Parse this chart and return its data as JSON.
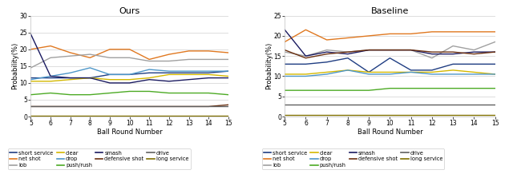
{
  "x": [
    5,
    6,
    7,
    8,
    9,
    10,
    11,
    12,
    13,
    14,
    15
  ],
  "ours": {
    "short_service": [
      11.5,
      11.5,
      11.5,
      11.5,
      12.5,
      12.5,
      13.0,
      13.0,
      13.0,
      13.0,
      13.5
    ],
    "net_shot": [
      20.0,
      21.0,
      19.0,
      17.5,
      20.0,
      20.0,
      17.0,
      18.5,
      19.5,
      19.5,
      19.0
    ],
    "lob": [
      14.5,
      17.5,
      18.0,
      18.5,
      17.5,
      17.5,
      16.5,
      16.5,
      17.0,
      17.0,
      17.0
    ],
    "clear": [
      10.5,
      10.5,
      11.0,
      11.5,
      11.0,
      11.0,
      11.5,
      12.5,
      12.5,
      12.5,
      12.0
    ],
    "drop": [
      11.0,
      12.0,
      13.0,
      14.5,
      12.5,
      12.5,
      14.0,
      13.5,
      13.5,
      13.5,
      13.5
    ],
    "push_rush": [
      6.5,
      7.0,
      6.5,
      6.5,
      7.0,
      7.5,
      7.5,
      7.0,
      7.0,
      7.0,
      6.5
    ],
    "smash": [
      24.5,
      12.0,
      11.5,
      11.5,
      10.0,
      10.0,
      11.0,
      10.5,
      11.0,
      11.5,
      11.5
    ],
    "defensive_shot": [
      3.0,
      3.0,
      3.0,
      3.0,
      3.0,
      3.0,
      3.0,
      3.0,
      3.0,
      3.0,
      3.5
    ],
    "drive": [
      3.0,
      3.0,
      3.0,
      3.0,
      3.0,
      3.0,
      3.0,
      3.0,
      3.0,
      3.0,
      3.0
    ],
    "long_service": [
      0.2,
      0.2,
      0.2,
      0.2,
      0.2,
      0.2,
      0.2,
      0.2,
      0.2,
      0.2,
      0.2
    ]
  },
  "baseline": {
    "short_service": [
      13.0,
      13.0,
      13.5,
      14.5,
      11.0,
      14.5,
      11.5,
      11.5,
      13.0,
      13.0,
      13.0
    ],
    "net_shot": [
      18.5,
      21.5,
      19.0,
      19.5,
      20.0,
      20.5,
      20.5,
      21.0,
      21.0,
      21.0,
      21.0
    ],
    "lob": [
      16.0,
      15.0,
      16.5,
      16.0,
      16.5,
      16.5,
      16.5,
      14.5,
      17.5,
      16.5,
      18.5
    ],
    "clear": [
      10.5,
      10.5,
      11.0,
      11.5,
      11.0,
      11.0,
      11.0,
      11.0,
      11.5,
      11.0,
      10.5
    ],
    "drop": [
      10.0,
      10.0,
      10.5,
      11.5,
      10.5,
      10.5,
      11.0,
      10.5,
      10.5,
      10.5,
      10.5
    ],
    "push_rush": [
      6.5,
      6.5,
      6.5,
      6.5,
      6.5,
      7.0,
      7.0,
      7.0,
      7.0,
      7.0,
      7.0
    ],
    "smash": [
      21.5,
      15.0,
      16.0,
      15.5,
      16.5,
      16.5,
      16.5,
      15.5,
      15.5,
      16.0,
      16.0
    ],
    "defensive_shot": [
      16.5,
      14.5,
      15.5,
      16.0,
      16.5,
      16.5,
      16.5,
      16.0,
      16.0,
      15.5,
      16.0
    ],
    "drive": [
      3.0,
      3.0,
      3.0,
      3.0,
      3.0,
      3.0,
      3.0,
      3.0,
      3.0,
      3.0,
      3.0
    ],
    "long_service": [
      0.5,
      0.5,
      0.5,
      0.5,
      0.5,
      0.5,
      0.5,
      0.5,
      0.5,
      0.5,
      0.5
    ]
  },
  "colors": {
    "short_service": "#1f3d82",
    "net_shot": "#e07820",
    "lob": "#a0a0a0",
    "clear": "#d4b800",
    "drop": "#4d96c8",
    "push_rush": "#4caa24",
    "smash": "#1a1a60",
    "defensive_shot": "#6b3010",
    "drive": "#606060",
    "long_service": "#807000"
  },
  "legend_labels": {
    "short_service": "short service",
    "net_shot": "net shot",
    "lob": "lob",
    "clear": "clear",
    "drop": "drop",
    "push_rush": "push/rush",
    "smash": "smash",
    "defensive_shot": "defensive shot",
    "drive": "drive",
    "long_service": "long service"
  },
  "legend_order": [
    "short_service",
    "net_shot",
    "lob",
    "clear",
    "drop",
    "push_rush",
    "smash",
    "defensive_shot",
    "drive",
    "long_service"
  ],
  "ylim_ours": [
    0,
    30
  ],
  "ylim_baseline": [
    0,
    25
  ],
  "yticks_ours": [
    0,
    5,
    10,
    15,
    20,
    25,
    30
  ],
  "yticks_baseline": [
    0,
    5,
    10,
    15,
    20,
    25
  ],
  "xlabel": "Ball Round Number",
  "ylabel": "Probability(%)",
  "title_ours": "Ours",
  "title_baseline": "Baseline",
  "background_color": "#ffffff"
}
